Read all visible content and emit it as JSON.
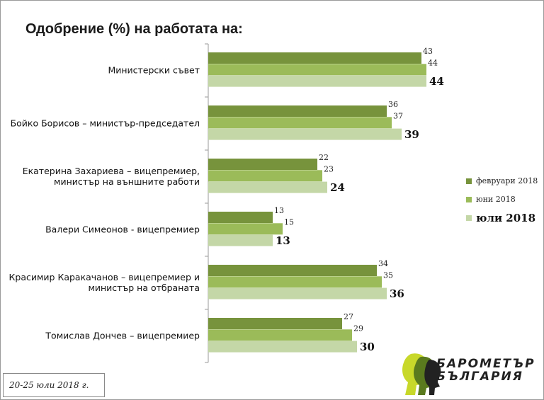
{
  "chart_data": {
    "type": "bar",
    "orientation": "horizontal",
    "title": "Одобрение (%) на работата на:",
    "categories": [
      [
        "Министерски съвет"
      ],
      [
        "Бойко Борисов – министър-председател"
      ],
      [
        "Екатерина Захариева – вицепремиер,",
        "министър на външните работи"
      ],
      [
        "Валери Симеонов - вицепремиер"
      ],
      [
        "Красимир Каракачанов – вицепремиер и",
        "министър  на отбраната"
      ],
      [
        "Томислав Дончев – вицепремиер"
      ]
    ],
    "series": [
      {
        "name": "февруари 2018",
        "color": "#77933c",
        "values": [
          43,
          36,
          22,
          13,
          34,
          27
        ]
      },
      {
        "name": "юни 2018",
        "color": "#9bbb59",
        "values": [
          44,
          37,
          23,
          15,
          35,
          29
        ]
      },
      {
        "name": "юли 2018",
        "color": "#c4d7a7",
        "values": [
          44,
          39,
          24,
          13,
          36,
          30
        ]
      }
    ],
    "xlim": [
      0,
      100
    ],
    "legend_position": "right"
  },
  "footnote": "20-25 юли 2018 г.",
  "logo": {
    "line1": "БАРОМЕТЪР",
    "line2": "БЪЛГАРИЯ",
    "colors": [
      "#c8d82a",
      "#5a7a1e",
      "#222222"
    ]
  }
}
